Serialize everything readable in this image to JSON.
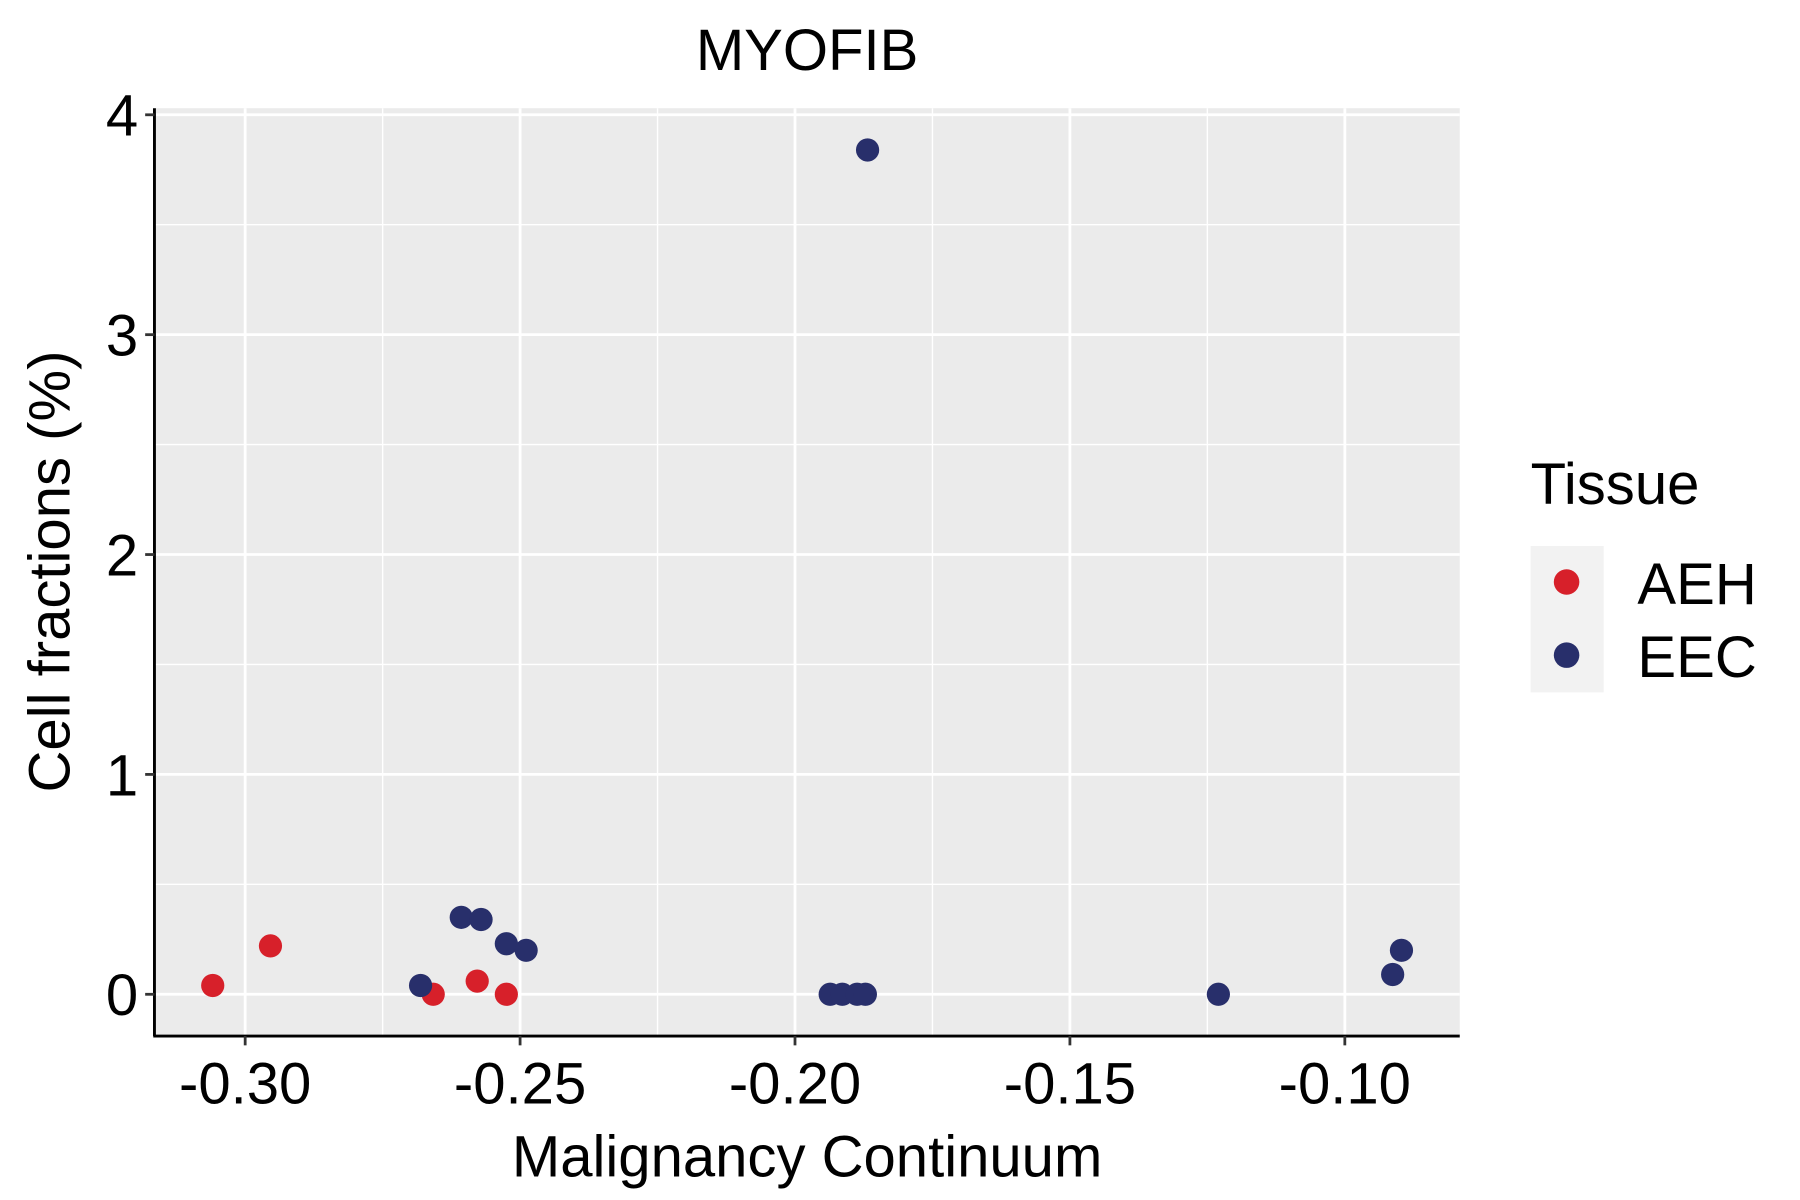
{
  "chart_data": {
    "type": "scatter",
    "title": "MYOFIB",
    "xlabel": "Malignancy Continuum",
    "ylabel": "Cell fractions (%)",
    "xlim": [
      -0.3165,
      -0.0791
    ],
    "ylim": [
      -0.19,
      4.03
    ],
    "xticks": [
      -0.3,
      -0.25,
      -0.2,
      -0.15,
      -0.1
    ],
    "xtick_labels": [
      "-0.30",
      "-0.25",
      "-0.20",
      "-0.15",
      "-0.10"
    ],
    "yticks": [
      0,
      1,
      2,
      3,
      4
    ],
    "ytick_labels": [
      "0",
      "1",
      "2",
      "3",
      "4"
    ],
    "grid": true,
    "legend": {
      "title": "Tissue",
      "position": "right"
    },
    "series": [
      {
        "name": "AEH",
        "color": "#D7202A",
        "points": [
          [
            -0.3059,
            0.04
          ],
          [
            -0.2954,
            0.22
          ],
          [
            -0.2658,
            0.0
          ],
          [
            -0.2578,
            0.06
          ],
          [
            -0.2525,
            0.0
          ]
        ]
      },
      {
        "name": "EEC",
        "color": "#282F6B",
        "points": [
          [
            -0.1868,
            3.84
          ],
          [
            -0.2681,
            0.04
          ],
          [
            -0.2607,
            0.35
          ],
          [
            -0.2571,
            0.34
          ],
          [
            -0.2525,
            0.23
          ],
          [
            -0.2489,
            0.2
          ],
          [
            -0.1936,
            0.0
          ],
          [
            -0.1914,
            0.0
          ],
          [
            -0.1887,
            0.0
          ],
          [
            -0.1872,
            0.0
          ],
          [
            -0.123,
            0.0
          ],
          [
            -0.0913,
            0.09
          ],
          [
            -0.0897,
            0.2
          ]
        ]
      }
    ]
  }
}
